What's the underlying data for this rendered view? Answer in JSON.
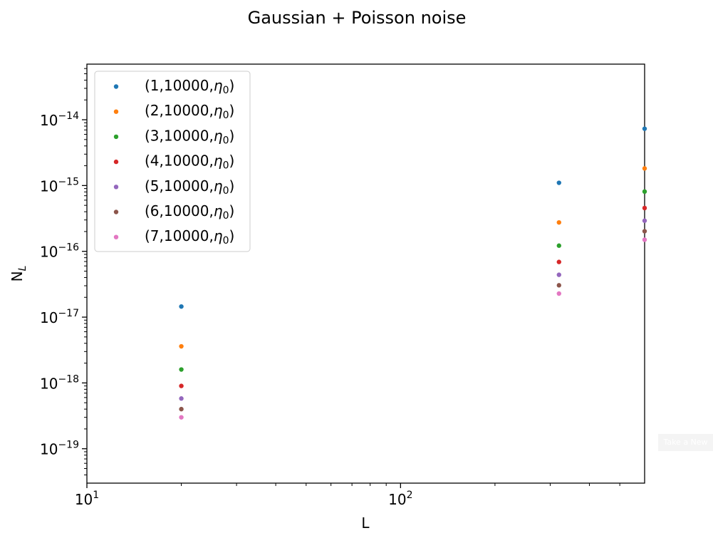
{
  "chart_data": {
    "type": "scatter",
    "title": "Gaussian + Poisson noise",
    "xlabel": "L",
    "ylabel": "N",
    "ylabel_sub": "L",
    "xscale": "log",
    "yscale": "log",
    "xlim": [
      10,
      600
    ],
    "ylim": [
      3e-20,
      7e-14
    ],
    "x_ticks": [
      {
        "value": 10,
        "base": "10",
        "exp": "1"
      },
      {
        "value": 100,
        "base": "10",
        "exp": "2"
      }
    ],
    "y_ticks": [
      {
        "value": 1e-19,
        "base": "10",
        "exp": "−19"
      },
      {
        "value": 1e-18,
        "base": "10",
        "exp": "−18"
      },
      {
        "value": 1e-17,
        "base": "10",
        "exp": "−17"
      },
      {
        "value": 1e-16,
        "base": "10",
        "exp": "−16"
      },
      {
        "value": 1e-15,
        "base": "10",
        "exp": "−15"
      },
      {
        "value": 1e-14,
        "base": "10",
        "exp": "−14"
      }
    ],
    "grid": false,
    "legend_position": "upper-left",
    "x": [
      20,
      320,
      600
    ],
    "series": [
      {
        "name": "(1,10000,η0)",
        "label_main": "(1,10000,",
        "label_sym": "η",
        "label_sub": "0",
        "label_end": ")",
        "color": "#1f77b4",
        "values": [
          1.45e-17,
          1.1e-15,
          7.3e-15
        ]
      },
      {
        "name": "(2,10000,η0)",
        "label_main": "(2,10000,",
        "label_sym": "η",
        "label_sub": "0",
        "label_end": ")",
        "color": "#ff7f0e",
        "values": [
          3.6e-18,
          2.75e-16,
          1.82e-15
        ]
      },
      {
        "name": "(3,10000,η0)",
        "label_main": "(3,10000,",
        "label_sym": "η",
        "label_sub": "0",
        "label_end": ")",
        "color": "#2ca02c",
        "values": [
          1.6e-18,
          1.22e-16,
          8.1e-16
        ]
      },
      {
        "name": "(4,10000,η0)",
        "label_main": "(4,10000,",
        "label_sym": "η",
        "label_sub": "0",
        "label_end": ")",
        "color": "#d62728",
        "values": [
          9e-19,
          6.9e-17,
          4.55e-16
        ]
      },
      {
        "name": "(5,10000,η0)",
        "label_main": "(5,10000,",
        "label_sym": "η",
        "label_sub": "0",
        "label_end": ")",
        "color": "#9467bd",
        "values": [
          5.8e-19,
          4.4e-17,
          2.92e-16
        ]
      },
      {
        "name": "(6,10000,η0)",
        "label_main": "(6,10000,",
        "label_sym": "η",
        "label_sub": "0",
        "label_end": ")",
        "color": "#8c564b",
        "values": [
          4e-19,
          3.05e-17,
          2.02e-16
        ]
      },
      {
        "name": "(7,10000,η0)",
        "label_main": "(7,10000,",
        "label_sym": "η",
        "label_sub": "0",
        "label_end": ")",
        "color": "#e377c2",
        "values": [
          3e-19,
          2.28e-17,
          1.5e-16
        ]
      }
    ]
  },
  "overlay_button": {
    "label": "Take a New"
  }
}
